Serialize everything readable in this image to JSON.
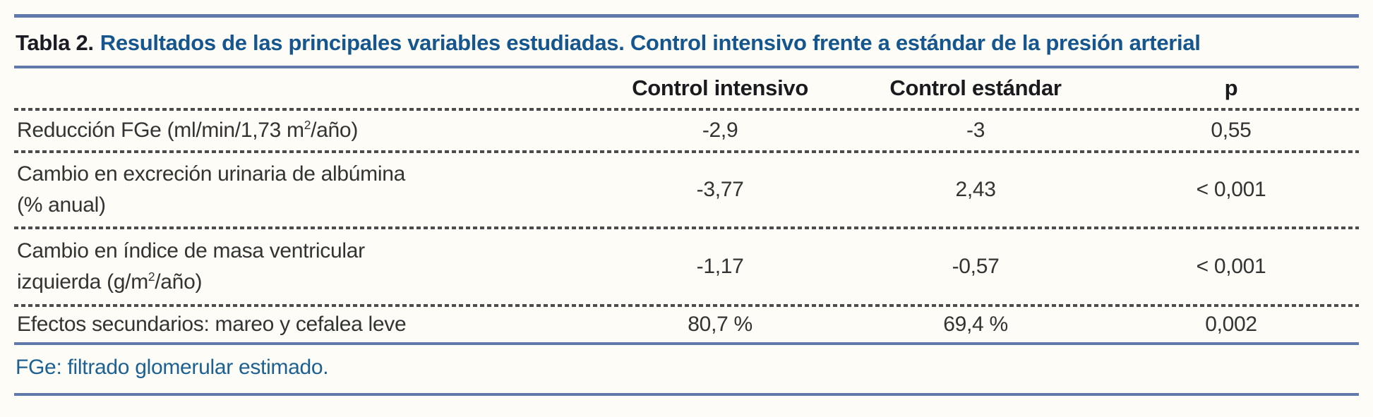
{
  "title": {
    "label": "Tabla 2.",
    "text": "Resultados de las principales variables estudiadas. Control intensivo frente a estándar de la presión arterial"
  },
  "table": {
    "headers": {
      "col2": "Control intensivo",
      "col3": "Control estándar",
      "col4": "p"
    },
    "rows": [
      {
        "label_parts": [
          "Reducción FGe (ml/min/1,73 m",
          "2",
          "/año)"
        ],
        "intensivo": "-2,9",
        "estandar": "-3",
        "p": "0,55"
      },
      {
        "label_lines": [
          "Cambio en excreción urinaria de albúmina",
          "(% anual)"
        ],
        "intensivo": "-3,77",
        "estandar": "2,43",
        "p": "< 0,001"
      },
      {
        "label_line1": "Cambio en índice de masa ventricular",
        "label_line2_parts": [
          "izquierda (g/m",
          "2",
          "/año)"
        ],
        "intensivo": "-1,17",
        "estandar": "-0,57",
        "p": "< 0,001"
      },
      {
        "label": "Efectos secundarios: mareo y cefalea leve",
        "intensivo": "80,7 %",
        "estandar": "69,4 %",
        "p": "0,002"
      }
    ]
  },
  "footnote": "FGe: filtrado glomerular estimado.",
  "colors": {
    "rule_blue": "#5f79ac",
    "title_blue": "#16568e",
    "footnote_blue": "#1d6092",
    "dash_gray": "#4c4c4c",
    "text_dark": "#333333",
    "background": "#fdfcf6"
  }
}
